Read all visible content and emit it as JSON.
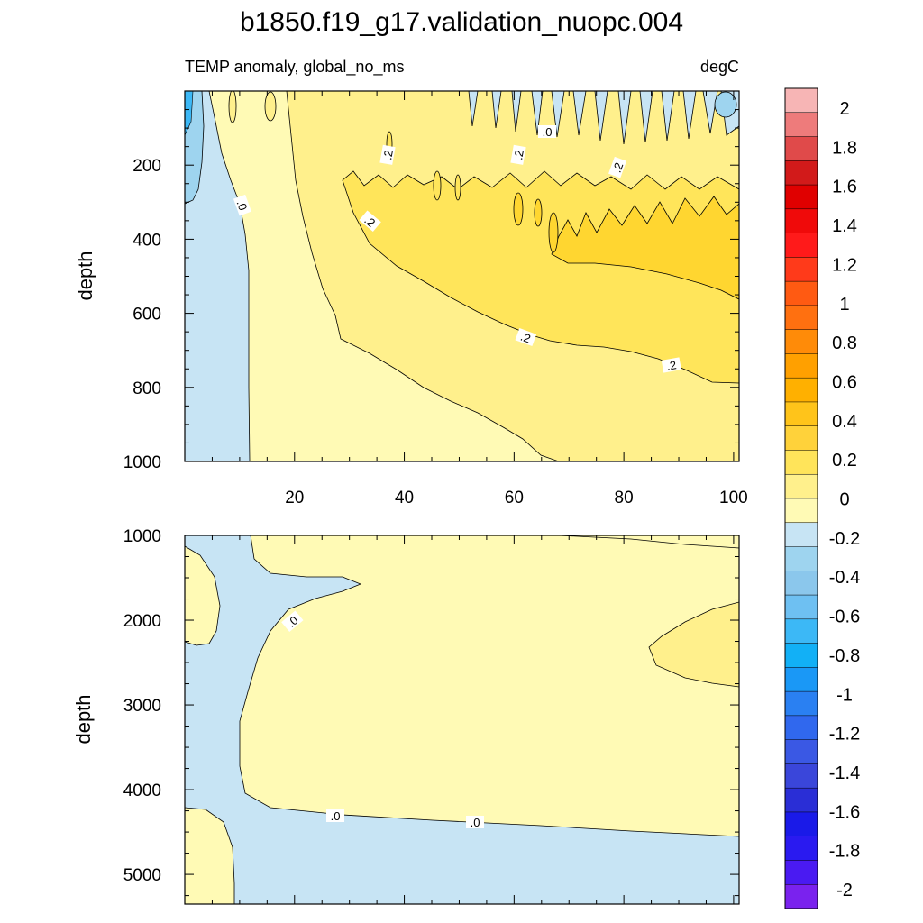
{
  "title": "b1850.f19_g17.validation_nuopc.004",
  "colors": {
    "neg_0_0.2": "#c7e4f4",
    "neg_0.2_0.4": "#9ed4ef",
    "pos_0_0.2": "#fffab5",
    "pos_0.2_0.4": "#fff08c",
    "pos_0.4_0.6": "#ffe55a",
    "pos_0.6_0.8": "#ffd630",
    "line": "#000000"
  },
  "colorbar": {
    "labels": [
      "2",
      "1.8",
      "1.6",
      "1.4",
      "1.2",
      "1",
      "0.8",
      "0.6",
      "0.4",
      "0.2",
      "0",
      "-0.2",
      "-0.4",
      "-0.6",
      "-0.8",
      "-1",
      "-1.2",
      "-1.4",
      "-1.6",
      "-1.8",
      "-2"
    ],
    "colors": [
      "#f7b5b5",
      "#ee7b7b",
      "#e04a4a",
      "#d21a1a",
      "#e00000",
      "#f00a0a",
      "#ff1a1a",
      "#ff3a1a",
      "#ff5a12",
      "#ff7010",
      "#ff8b08",
      "#ffa000",
      "#ffb000",
      "#ffc41a",
      "#ffd23a",
      "#ffe45a",
      "#fff08c",
      "#fffab5",
      "#c7e4f4",
      "#9ed4ef",
      "#8bc7ec",
      "#6ec0f2",
      "#3cb8f6",
      "#12b0f6",
      "#1a98f6",
      "#2a80f2",
      "#3068ee",
      "#3a58e4",
      "#3a46da",
      "#2a2ed6",
      "#1a1ae8",
      "#2a1af0",
      "#4a1af2",
      "#7a22ee"
    ]
  },
  "chart_data": [
    {
      "type": "heatmap",
      "panel": "upper",
      "title": "TEMP anomaly, global_no_ms",
      "units": "degC",
      "xlabel": "",
      "ylabel": "depth",
      "xlim": [
        0,
        101
      ],
      "ylim": [
        1000,
        0
      ],
      "xticks": [
        "20",
        "40",
        "60",
        "80",
        "100"
      ],
      "yticks": [
        "200",
        "400",
        "600",
        "800",
        "1000"
      ],
      "contour_interval": 0.2,
      "contour_labels": [
        ".0",
        ".0",
        ".2",
        ".2",
        ".2",
        ".2",
        ".2",
        ".2"
      ]
    },
    {
      "type": "heatmap",
      "panel": "lower",
      "xlabel": "",
      "ylabel": "depth",
      "xlim": [
        0,
        101
      ],
      "ylim": [
        5350,
        1000
      ],
      "yticks": [
        "1000",
        "2000",
        "3000",
        "4000",
        "5000"
      ],
      "contour_interval": 0.2,
      "contour_labels": [
        ".0",
        ".0",
        ".0"
      ]
    }
  ]
}
